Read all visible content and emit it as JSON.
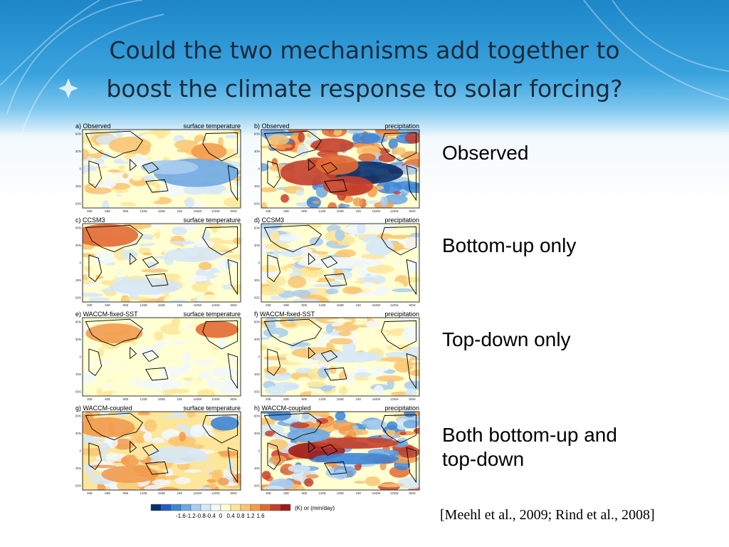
{
  "slide": {
    "title_line1": "Could the two mechanisms add together to",
    "title_line2": "boost the climate response to solar forcing?",
    "labels": [
      "Observed",
      "Bottom-up only",
      "Top-down only"
    ],
    "label_both_line1": "Both bottom-up and",
    "label_both_line2": "top-down",
    "citation": "[Meehl et al., 2009; Rind et al., 2008]"
  },
  "panels": [
    {
      "id": "a) Observed",
      "field": "surface temperature",
      "style": "obs_t"
    },
    {
      "id": "b) Observed",
      "field": "precipitation",
      "style": "obs_p"
    },
    {
      "id": "c) CCSM3",
      "field": "surface temperature",
      "style": "ccsm_t"
    },
    {
      "id": "d) CCSM3",
      "field": "precipitation",
      "style": "ccsm_p"
    },
    {
      "id": "e) WACCM-fixed-SST",
      "field": "surface temperature",
      "style": "waccm_fix_t"
    },
    {
      "id": "f) WACCM-fixed-SST",
      "field": "precipitation",
      "style": "waccm_fix_p"
    },
    {
      "id": "g) WACCM-coupled",
      "field": "surface temperature",
      "style": "waccm_cpl_t"
    },
    {
      "id": "h) WACCM-coupled",
      "field": "precipitation",
      "style": "waccm_cpl_p"
    }
  ],
  "lon_ticks": [
    "30E",
    "60E",
    "90E",
    "120E",
    "150E",
    "180",
    "150W",
    "120W",
    "90W"
  ],
  "lat_ticks": [
    "60N",
    "30N",
    "0",
    "30S",
    "60S"
  ],
  "colorbar": {
    "values": [
      "-1.6",
      "-1.2",
      "-0.8",
      "-0.4",
      "0",
      "0.4",
      "0.8",
      "1.2",
      "1.6"
    ],
    "unit": "(K) or (mm/day)",
    "colors": [
      "#08306b",
      "#1f5fbf",
      "#3f86d6",
      "#6fa8e3",
      "#a9cdf0",
      "#d6e8f7",
      "#f2f8fc",
      "#ffffd2",
      "#fde69a",
      "#f9c572",
      "#f29b4e",
      "#e36a33",
      "#c7402a",
      "#9e1b1b"
    ]
  }
}
